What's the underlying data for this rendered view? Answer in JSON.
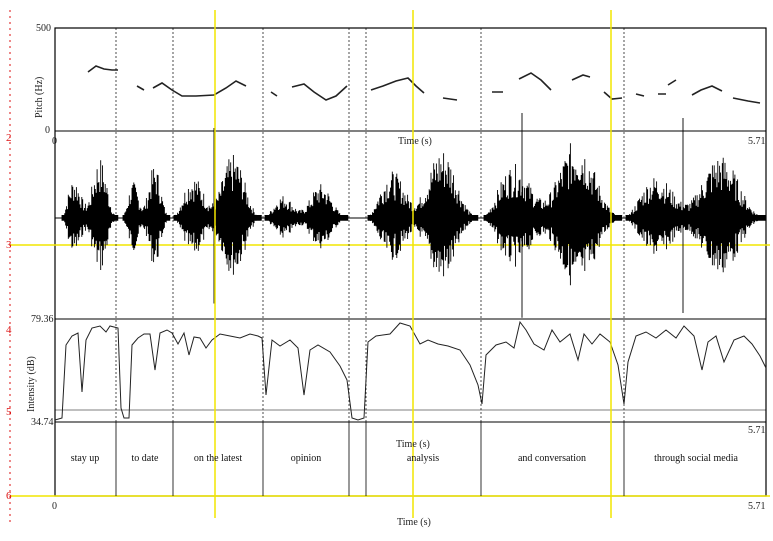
{
  "panels": {
    "pitch": {
      "ylabel": "Pitch (Hz)",
      "ymax": "500",
      "ymin": "0"
    },
    "waveform": {
      "time_label": "Time (s)",
      "t_start": "0",
      "t_end": "5.71"
    },
    "intensity": {
      "ylabel": "Intensity (dB)",
      "ymax": "79.36",
      "ymin": "34.74"
    },
    "textgrid": {
      "time_label": "Time (s)",
      "t_end": "5.71",
      "words": [
        "stay up",
        "to date",
        "on the latest",
        "opinion",
        "analysis",
        "and conversation",
        "through social media"
      ]
    },
    "bottom_axis": {
      "t_start": "0",
      "t_end": "5.71",
      "time_label": "Time (s)"
    }
  },
  "red_ruler": {
    "ticks": [
      "2",
      "3",
      "4",
      "5",
      "6"
    ]
  },
  "colors": {
    "cursor_yellow": "#f2e600",
    "ruler_red": "#d11111",
    "trace": "#000000"
  }
}
